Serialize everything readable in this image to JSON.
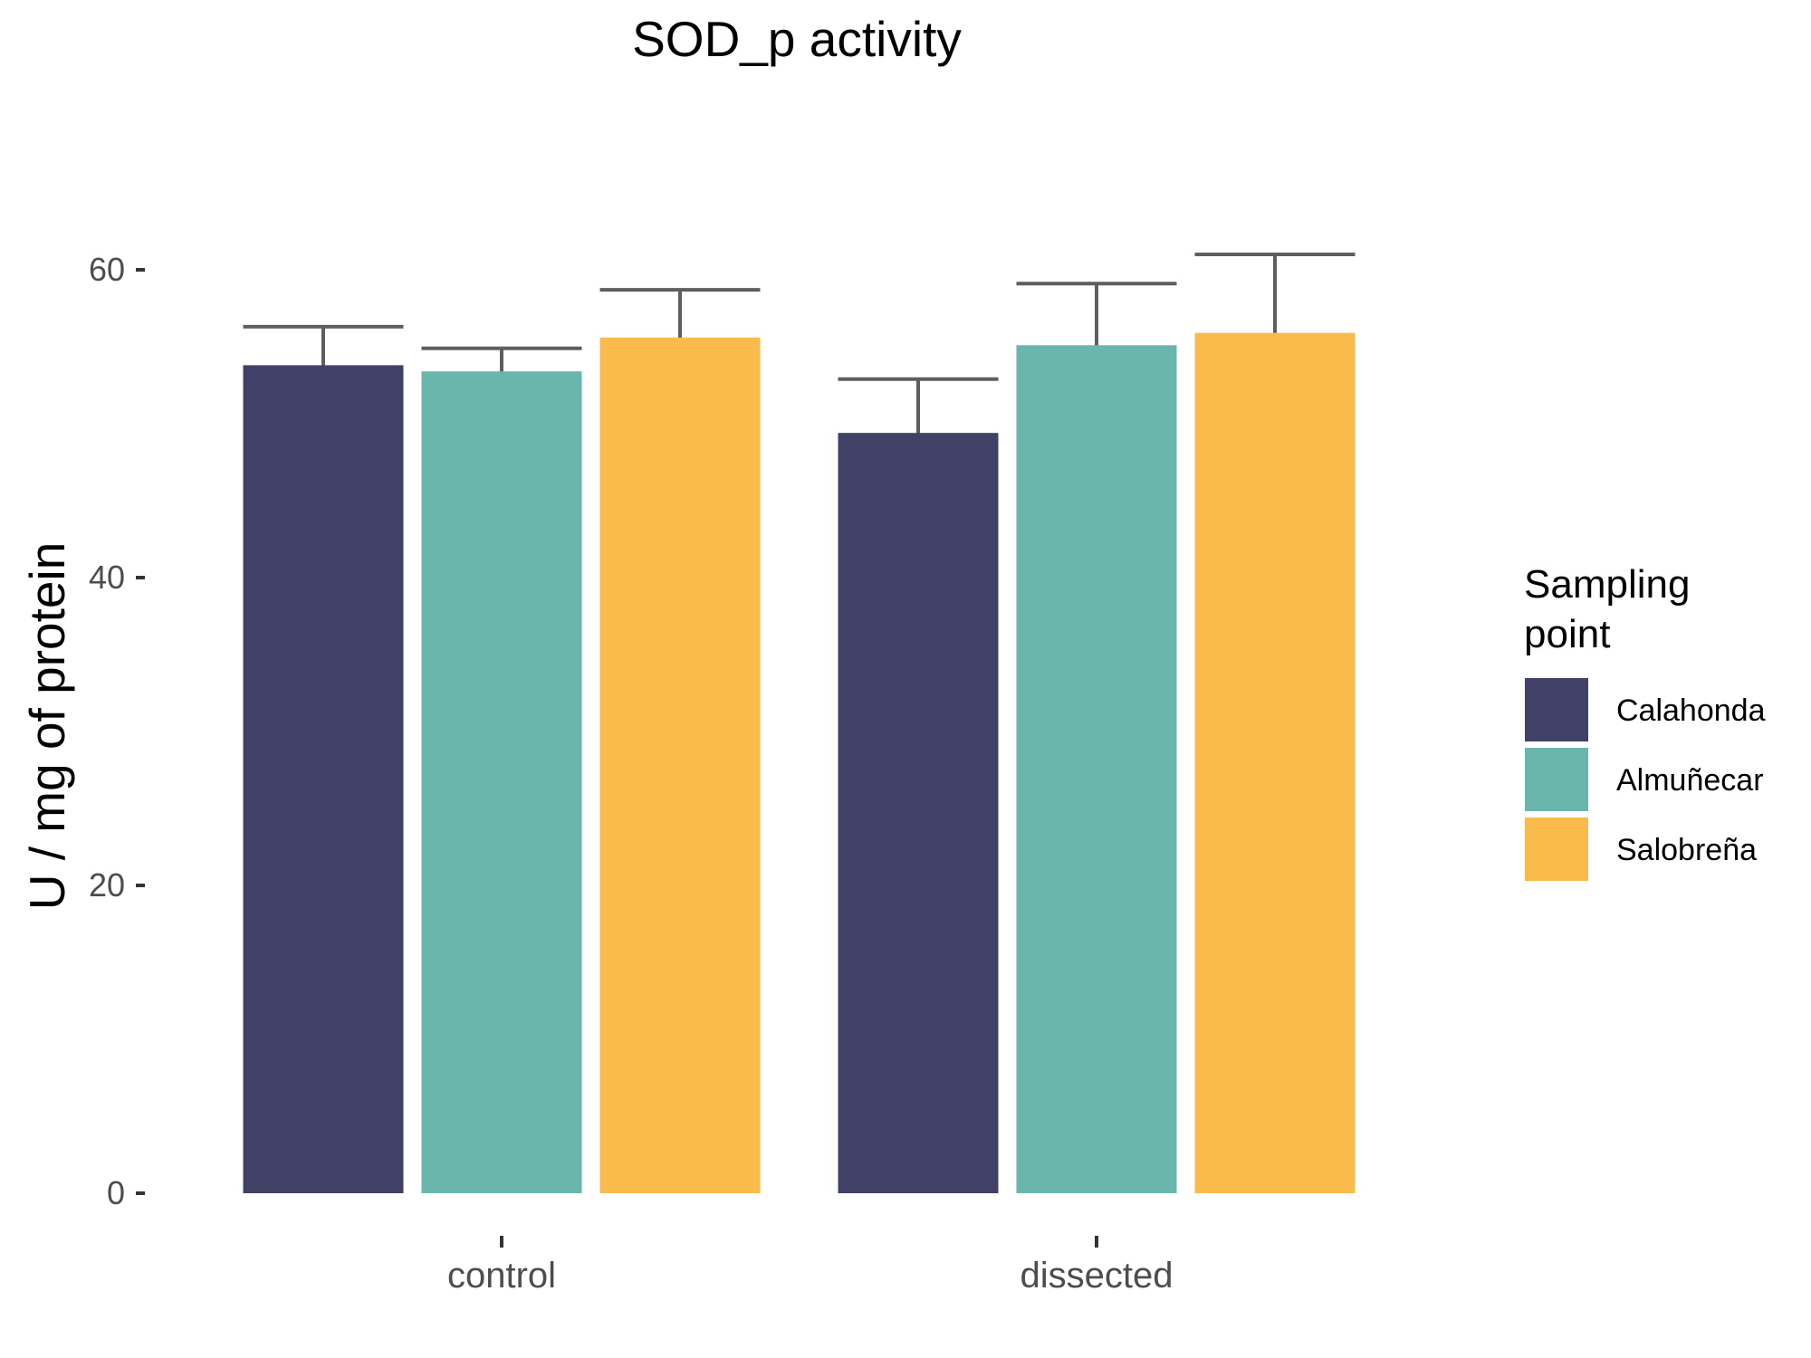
{
  "chart_data": {
    "type": "bar",
    "title": "SOD_p activity",
    "xlabel": "",
    "ylabel": "U / mg  of protein",
    "categories": [
      "control",
      "dissected"
    ],
    "ylim": [
      0,
      70
    ],
    "yticks": [
      0,
      20,
      40,
      60
    ],
    "grid": false,
    "error_bars": true,
    "legend": {
      "title_lines": [
        "Sampling",
        "point"
      ],
      "position": "right"
    },
    "series": [
      {
        "name": "Calahonda",
        "color": "#414066",
        "values": [
          53.8,
          49.4
        ],
        "err_low": [
          51.3,
          45.9
        ],
        "err_high": [
          56.3,
          52.9
        ]
      },
      {
        "name": "Almuñecar",
        "color": "#6ab5ac",
        "values": [
          53.4,
          55.1
        ],
        "err_low": [
          51.9,
          51.2
        ],
        "err_high": [
          54.9,
          59.1
        ]
      },
      {
        "name": "Salobreña",
        "color": "#f9bb4c",
        "values": [
          55.6,
          55.9
        ],
        "err_low": [
          52.6,
          51.0
        ],
        "err_high": [
          58.7,
          61.0
        ]
      }
    ]
  }
}
